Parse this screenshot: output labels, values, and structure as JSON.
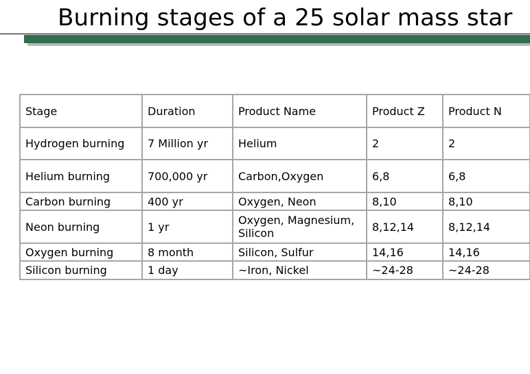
{
  "slide": {
    "title": "Burning stages of a 25 solar mass star"
  },
  "theme": {
    "bar_color": "#2f6e4e",
    "bar_shadow_color": "#b8b8b8",
    "border_color": "#a6a6a6"
  },
  "table": {
    "headers": [
      "Stage",
      "Duration",
      "Product Name",
      "Product Z",
      "Product N"
    ],
    "rows": [
      [
        "Hydrogen burning",
        "7 Million yr",
        "Helium",
        "2",
        "2"
      ],
      [
        "Helium burning",
        "700,000 yr",
        "Carbon,Oxygen",
        "6,8",
        "6,8"
      ],
      [
        "Carbon burning",
        "400 yr",
        "Oxygen, Neon",
        "8,10",
        "8,10"
      ],
      [
        "Neon burning",
        "1 yr",
        "Oxygen, Magnesium, Silicon",
        "8,12,14",
        "8,12,14"
      ],
      [
        "Oxygen burning",
        "8 month",
        "Silicon, Sulfur",
        "14,16",
        "14,16"
      ],
      [
        "Silicon burning",
        "1 day",
        "~Iron, Nickel",
        "~24-28",
        "~24-28"
      ]
    ]
  }
}
